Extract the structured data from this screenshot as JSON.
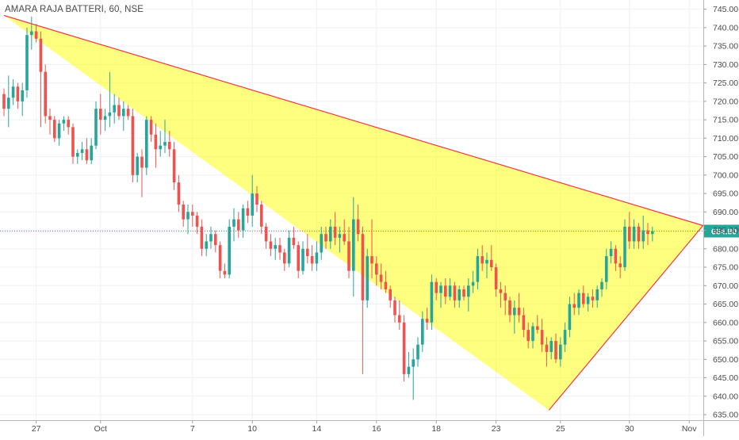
{
  "title": "AMARA RAJA BATTERI, 60, NSE",
  "chart_data": {
    "type": "candlestick",
    "symbol": "AMARA RAJA BATTERI",
    "interval": "60",
    "exchange": "NSE",
    "y_range": [
      633.5,
      747.5
    ],
    "y_ticks": [
      "745.00",
      "740.00",
      "735.00",
      "730.00",
      "725.00",
      "720.00",
      "715.00",
      "710.00",
      "705.00",
      "700.00",
      "695.00",
      "690.00",
      "685.00",
      "680.00",
      "675.00",
      "670.00",
      "665.00",
      "660.00",
      "655.00",
      "650.00",
      "645.00",
      "640.00",
      "635.00"
    ],
    "x_ticks": [
      {
        "label": "27",
        "bar": 7
      },
      {
        "label": "Oct",
        "bar": 21
      },
      {
        "label": "7",
        "bar": 41
      },
      {
        "label": "10",
        "bar": 54
      },
      {
        "label": "14",
        "bar": 68
      },
      {
        "label": "16",
        "bar": 81
      },
      {
        "label": "18",
        "bar": 94
      },
      {
        "label": "23",
        "bar": 107
      },
      {
        "label": "25",
        "bar": 121
      },
      {
        "label": "30",
        "bar": 136
      },
      {
        "label": "Nov",
        "bar": 149
      }
    ],
    "last_price": "684.80",
    "last_price_value": 684.8,
    "colors": {
      "up": "#26a69a",
      "down": "#ef5350",
      "price_line": "#26a69a",
      "triangle_fill": "#ffff00",
      "triangle_line": "#f23645"
    },
    "candles": [
      [
        722.0,
        723.5,
        716.0,
        718.0
      ],
      [
        718.0,
        727.0,
        713.0,
        721.0
      ],
      [
        721.0,
        726.0,
        719.0,
        724.0
      ],
      [
        724.0,
        725.0,
        718.0,
        720.0
      ],
      [
        720.0,
        725.0,
        716.0,
        723.0
      ],
      [
        723.0,
        740.0,
        721.0,
        738.0
      ],
      [
        738.0,
        743.0,
        734.0,
        739.0
      ],
      [
        739.0,
        741.0,
        736.0,
        737.0
      ],
      [
        737.0,
        739.0,
        713.0,
        728.0
      ],
      [
        728.0,
        730.0,
        714.0,
        716.0
      ],
      [
        716.0,
        718.0,
        711.0,
        715.0
      ],
      [
        715.0,
        716.0,
        709.0,
        710.0
      ],
      [
        710.0,
        715.0,
        708.0,
        714.0
      ],
      [
        714.0,
        716.0,
        712.0,
        715.0
      ],
      [
        715.0,
        716.0,
        711.0,
        713.0
      ],
      [
        713.0,
        714.0,
        703.0,
        705.0
      ],
      [
        705.0,
        707.0,
        703.0,
        706.0
      ],
      [
        706.0,
        709.0,
        704.0,
        707.0
      ],
      [
        707.0,
        710.0,
        703.0,
        704.0
      ],
      [
        704.0,
        710.0,
        703.0,
        708.0
      ],
      [
        708.0,
        720.0,
        707.0,
        718.0
      ],
      [
        718.0,
        722.0,
        711.0,
        715.0
      ],
      [
        715.0,
        718.0,
        712.0,
        716.0
      ],
      [
        716.0,
        728.0,
        713.0,
        717.0
      ],
      [
        717.0,
        722.0,
        714.0,
        719.0
      ],
      [
        719.0,
        721.0,
        715.0,
        716.0
      ],
      [
        716.0,
        720.0,
        712.0,
        718.0
      ],
      [
        718.0,
        719.0,
        715.0,
        716.0
      ],
      [
        716.0,
        718.0,
        698.0,
        700.0
      ],
      [
        700.0,
        706.0,
        698.0,
        705.0
      ],
      [
        705.0,
        707.0,
        694.0,
        702.0
      ],
      [
        702.0,
        716.0,
        700.0,
        715.0
      ],
      [
        715.0,
        716.0,
        709.0,
        711.0
      ],
      [
        711.0,
        714.0,
        702.0,
        707.0
      ],
      [
        707.0,
        712.0,
        705.0,
        708.0
      ],
      [
        708.0,
        715.0,
        706.0,
        709.0
      ],
      [
        709.0,
        712.0,
        705.0,
        707.0
      ],
      [
        707.0,
        709.0,
        696.0,
        698.0
      ],
      [
        698.0,
        700.0,
        690.0,
        692.0
      ],
      [
        692.0,
        693.0,
        686.0,
        688.0
      ],
      [
        688.0,
        692.0,
        684.0,
        690.0
      ],
      [
        690.0,
        692.0,
        686.0,
        689.0
      ],
      [
        689.0,
        690.0,
        684.0,
        686.0
      ],
      [
        686.0,
        688.0,
        678.0,
        680.0
      ],
      [
        680.0,
        684.0,
        678.0,
        682.0
      ],
      [
        682.0,
        686.0,
        680.0,
        684.0
      ],
      [
        684.0,
        685.0,
        679.0,
        681.0
      ],
      [
        681.0,
        682.0,
        672.0,
        674.0
      ],
      [
        674.0,
        676.0,
        672.0,
        673.0
      ],
      [
        673.0,
        688.0,
        672.0,
        686.0
      ],
      [
        686.0,
        691.0,
        682.0,
        688.0
      ],
      [
        688.0,
        690.0,
        683.0,
        685.0
      ],
      [
        685.0,
        692.0,
        683.0,
        691.0
      ],
      [
        691.0,
        693.0,
        687.0,
        689.0
      ],
      [
        689.0,
        700.0,
        686.0,
        695.0
      ],
      [
        695.0,
        697.0,
        690.0,
        692.0
      ],
      [
        692.0,
        693.0,
        684.0,
        686.0
      ],
      [
        686.0,
        687.0,
        680.0,
        682.0
      ],
      [
        682.0,
        684.0,
        678.0,
        680.0
      ],
      [
        680.0,
        683.0,
        677.0,
        681.0
      ],
      [
        681.0,
        683.0,
        677.0,
        679.0
      ],
      [
        679.0,
        680.0,
        674.0,
        676.0
      ],
      [
        676.0,
        685.0,
        675.0,
        683.0
      ],
      [
        683.0,
        686.0,
        680.0,
        681.0
      ],
      [
        681.0,
        682.0,
        672.0,
        674.0
      ],
      [
        674.0,
        682.0,
        673.0,
        680.0
      ],
      [
        680.0,
        684.0,
        676.0,
        678.0
      ],
      [
        678.0,
        681.0,
        674.0,
        676.0
      ],
      [
        676.0,
        682.0,
        674.0,
        679.0
      ],
      [
        679.0,
        686.0,
        677.0,
        684.0
      ],
      [
        684.0,
        686.0,
        680.0,
        682.0
      ],
      [
        682.0,
        688.0,
        680.0,
        686.0
      ],
      [
        686.0,
        690.0,
        681.0,
        683.0
      ],
      [
        683.0,
        686.0,
        679.0,
        684.0
      ],
      [
        684.0,
        688.0,
        681.0,
        682.0
      ],
      [
        682.0,
        686.0,
        672.0,
        674.0
      ],
      [
        674.0,
        694.0,
        667.0,
        688.0
      ],
      [
        688.0,
        692.0,
        682.0,
        684.0
      ],
      [
        684.0,
        686.0,
        646.0,
        666.0
      ],
      [
        666.0,
        680.0,
        664.0,
        678.0
      ],
      [
        678.0,
        688.0,
        672.0,
        676.0
      ],
      [
        676.0,
        678.0,
        670.0,
        673.0
      ],
      [
        673.0,
        676.0,
        669.0,
        671.0
      ],
      [
        671.0,
        674.0,
        668.0,
        669.0
      ],
      [
        669.0,
        670.0,
        664.0,
        666.0
      ],
      [
        666.0,
        667.0,
        660.0,
        662.0
      ],
      [
        662.0,
        666.0,
        658.0,
        660.0
      ],
      [
        660.0,
        662.0,
        644.0,
        646.0
      ],
      [
        646.0,
        652.0,
        645.0,
        648.0
      ],
      [
        648.0,
        653.0,
        639.0,
        650.0
      ],
      [
        650.0,
        656.0,
        648.0,
        654.0
      ],
      [
        654.0,
        663.0,
        652.0,
        661.0
      ],
      [
        661.0,
        664.0,
        658.0,
        660.0
      ],
      [
        660.0,
        673.0,
        658.0,
        671.0
      ],
      [
        671.0,
        672.0,
        666.0,
        668.0
      ],
      [
        668.0,
        671.0,
        664.0,
        670.0
      ],
      [
        670.0,
        672.0,
        665.0,
        667.0
      ],
      [
        667.0,
        672.0,
        666.0,
        670.0
      ],
      [
        670.0,
        671.0,
        664.0,
        666.0
      ],
      [
        666.0,
        670.0,
        664.0,
        669.0
      ],
      [
        669.0,
        670.0,
        666.0,
        667.0
      ],
      [
        667.0,
        672.0,
        663.0,
        670.0
      ],
      [
        670.0,
        674.0,
        668.0,
        671.0
      ],
      [
        671.0,
        680.0,
        669.0,
        678.0
      ],
      [
        678.0,
        681.0,
        674.0,
        676.0
      ],
      [
        676.0,
        679.0,
        672.0,
        677.0
      ],
      [
        677.0,
        681.0,
        674.0,
        675.0
      ],
      [
        675.0,
        676.0,
        667.0,
        669.0
      ],
      [
        669.0,
        671.0,
        664.0,
        668.0
      ],
      [
        668.0,
        670.0,
        662.0,
        666.0
      ],
      [
        666.0,
        667.0,
        660.0,
        662.0
      ],
      [
        662.0,
        666.0,
        657.0,
        664.0
      ],
      [
        664.0,
        668.0,
        660.0,
        662.0
      ],
      [
        662.0,
        664.0,
        656.0,
        658.0
      ],
      [
        658.0,
        660.0,
        653.0,
        655.0
      ],
      [
        655.0,
        660.0,
        653.0,
        659.0
      ],
      [
        659.0,
        662.0,
        657.0,
        658.0
      ],
      [
        658.0,
        661.0,
        652.0,
        654.0
      ],
      [
        654.0,
        656.0,
        648.0,
        652.0
      ],
      [
        652.0,
        656.0,
        650.0,
        655.0
      ],
      [
        655.0,
        657.0,
        649.0,
        650.0
      ],
      [
        650.0,
        656.0,
        648.0,
        654.0
      ],
      [
        654.0,
        660.0,
        652.0,
        658.0
      ],
      [
        658.0,
        667.0,
        656.0,
        665.0
      ],
      [
        665.0,
        668.0,
        662.0,
        664.0
      ],
      [
        664.0,
        669.0,
        662.0,
        668.0
      ],
      [
        668.0,
        670.0,
        664.0,
        665.0
      ],
      [
        665.0,
        668.0,
        663.0,
        667.0
      ],
      [
        667.0,
        669.0,
        664.0,
        666.0
      ],
      [
        666.0,
        670.0,
        664.0,
        669.0
      ],
      [
        669.0,
        672.0,
        667.0,
        671.0
      ],
      [
        671.0,
        680.0,
        669.0,
        678.0
      ],
      [
        678.0,
        682.0,
        676.0,
        680.0
      ],
      [
        680.0,
        681.0,
        674.0,
        676.0
      ],
      [
        676.0,
        678.0,
        672.0,
        675.0
      ],
      [
        675.0,
        688.0,
        674.0,
        686.0
      ],
      [
        686.0,
        690.0,
        680.0,
        682.0
      ],
      [
        682.0,
        688.0,
        680.0,
        686.0
      ],
      [
        686.0,
        687.0,
        680.0,
        682.0
      ],
      [
        682.0,
        689.0,
        680.0,
        685.0
      ],
      [
        685.0,
        687.0,
        681.0,
        684.0
      ],
      [
        684.0,
        686.0,
        682.0,
        684.8
      ]
    ],
    "annotations": [
      {
        "type": "triangle",
        "points": [
          [
            0,
            743.3
          ],
          [
            152,
            686.3
          ],
          [
            118.5,
            636.2
          ]
        ]
      }
    ]
  }
}
